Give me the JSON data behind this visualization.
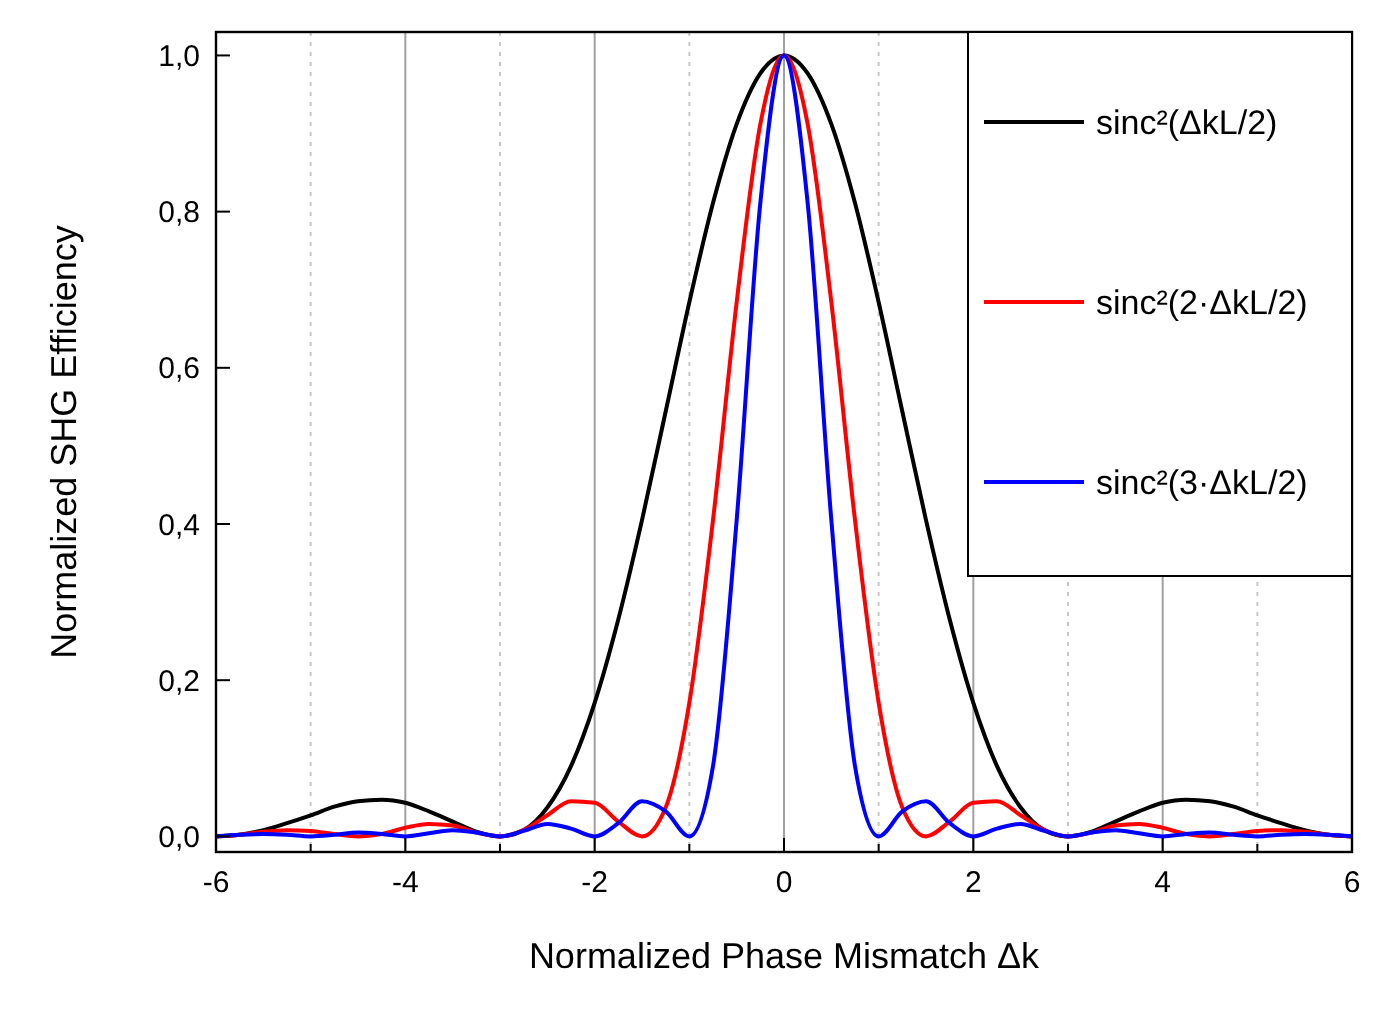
{
  "chart_data": {
    "type": "line",
    "xlabel": "Normalized Phase Mismatch Δk",
    "ylabel": "Normalized SHG Efficiency",
    "x": [
      -6,
      -5.75,
      -5.5,
      -5.25,
      -5,
      -4.75,
      -4.5,
      -4.25,
      -4,
      -3.75,
      -3.5,
      -3.25,
      -3,
      -2.75,
      -2.5,
      -2.25,
      -2,
      -1.75,
      -1.5,
      -1.25,
      -1,
      -0.75,
      -0.5,
      -0.25,
      0,
      0.25,
      0.5,
      0.75,
      1,
      1.25,
      1.5,
      1.75,
      2,
      2.25,
      2.5,
      2.75,
      3,
      3.25,
      3.5,
      3.75,
      4,
      4.25,
      4.5,
      4.75,
      5,
      5.25,
      5.5,
      5.75,
      6
    ],
    "series": [
      {
        "name": "sinc²(ΔkL/2)",
        "color": "#000000",
        "values": [
          0,
          0.002,
          0.008,
          0.017,
          0.027,
          0.038,
          0.045,
          0.047,
          0.043,
          0.032,
          0.019,
          0.006,
          0,
          0.008,
          0.037,
          0.09,
          0.171,
          0.278,
          0.405,
          0.544,
          0.684,
          0.811,
          0.912,
          0.977,
          1,
          0.977,
          0.912,
          0.811,
          0.684,
          0.544,
          0.405,
          0.278,
          0.171,
          0.09,
          0.037,
          0.008,
          0,
          0.006,
          0.019,
          0.032,
          0.043,
          0.047,
          0.045,
          0.038,
          0.027,
          0.017,
          0.008,
          0.002,
          0
        ]
      },
      {
        "name": "sinc²(2·ΔkL/2)",
        "color": "#ff0000",
        "values": [
          0,
          0.002,
          0.006,
          0.008,
          0.007,
          0.003,
          0,
          0.003,
          0.011,
          0.016,
          0.014,
          0.005,
          0,
          0.008,
          0.027,
          0.045,
          0.043,
          0.019,
          0,
          0.037,
          0.171,
          0.405,
          0.684,
          0.912,
          1,
          0.912,
          0.684,
          0.405,
          0.171,
          0.037,
          0,
          0.019,
          0.043,
          0.045,
          0.027,
          0.008,
          0,
          0.005,
          0.014,
          0.016,
          0.011,
          0.003,
          0,
          0.003,
          0.007,
          0.008,
          0.006,
          0.002,
          0
        ]
      },
      {
        "name": "sinc²(3·ΔkL/2)",
        "color": "#0000ff",
        "values": [
          0,
          0.002,
          0.003,
          0.002,
          0,
          0.002,
          0.005,
          0.003,
          0,
          0.004,
          0.008,
          0.005,
          0,
          0.007,
          0.016,
          0.01,
          0,
          0.017,
          0.045,
          0.032,
          0,
          0.09,
          0.405,
          0.811,
          1,
          0.811,
          0.405,
          0.09,
          0,
          0.032,
          0.045,
          0.017,
          0,
          0.01,
          0.016,
          0.007,
          0,
          0.005,
          0.008,
          0.004,
          0,
          0.003,
          0.005,
          0.002,
          0,
          0.002,
          0.003,
          0.002,
          0
        ]
      }
    ],
    "xlim": [
      -6,
      6
    ],
    "xticks": [
      -6,
      {
        "value": -5,
        "label": null
      },
      -4,
      {
        "value": -3,
        "label": null
      },
      -2,
      {
        "value": -1,
        "label": null
      },
      0,
      {
        "value": 1,
        "label": null
      },
      2,
      {
        "value": 3,
        "label": null
      },
      4,
      {
        "value": 5,
        "label": null
      },
      6
    ],
    "ylim": [
      -0.02,
      1.03
    ],
    "yticks": [
      {
        "value": 0,
        "label": "0,0"
      },
      {
        "value": 0.2,
        "label": "0,2"
      },
      {
        "value": 0.4,
        "label": "0,4"
      },
      {
        "value": 0.6,
        "label": "0,6"
      },
      {
        "value": 0.8,
        "label": "0,8"
      },
      {
        "value": 1,
        "label": "1,0"
      }
    ],
    "grid": "x",
    "legend": "top right",
    "line_style": "solid"
  }
}
